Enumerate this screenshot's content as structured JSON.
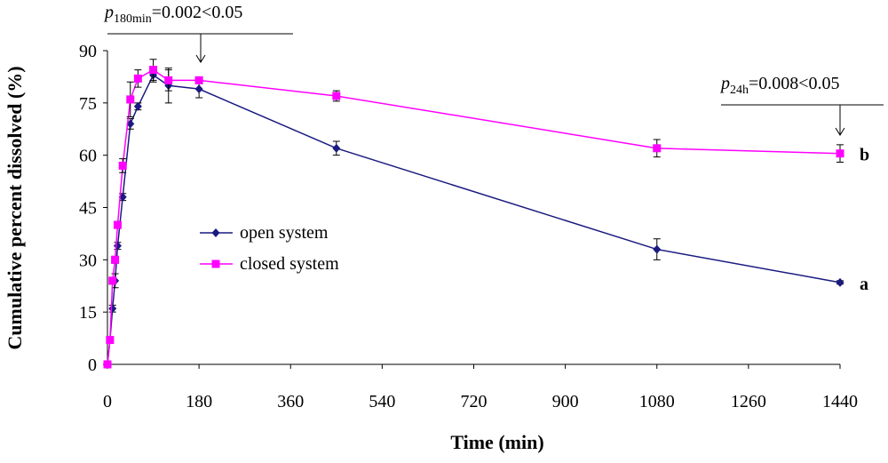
{
  "chart_data": {
    "type": "line",
    "x_label": "Time (min)",
    "y_label": "Cumulative percent dissolved (%)",
    "x": [
      0,
      5,
      10,
      15,
      20,
      30,
      45,
      60,
      90,
      120,
      180,
      450,
      1080,
      1440
    ],
    "series": [
      {
        "name": "open system",
        "color": "#1a1a80",
        "marker": "diamond",
        "label": "a",
        "values": [
          0,
          7,
          16,
          24,
          34,
          48,
          69,
          74,
          83,
          80,
          79,
          62,
          33,
          23.5
        ],
        "errors": [
          0,
          0.5,
          1,
          2,
          1,
          1,
          1.5,
          1,
          2,
          5,
          2.5,
          2,
          3,
          0.5
        ]
      },
      {
        "name": "closed system",
        "color": "#ff00ff",
        "marker": "square",
        "label": "b",
        "values": [
          0,
          7,
          24,
          30,
          40,
          57,
          76,
          82,
          84.5,
          81.5,
          81.5,
          77,
          62,
          60.5
        ],
        "errors": [
          0,
          0.5,
          1,
          1,
          1,
          2,
          5,
          2.5,
          3,
          3,
          0.5,
          1.5,
          2.5,
          2.5
        ]
      }
    ],
    "annotations": [
      {
        "text": "p",
        "subscript": "180min",
        "suffix": "=0.002<0.05"
      },
      {
        "text": "p",
        "subscript": "24h",
        "suffix": "=0.008<0.05"
      }
    ],
    "xlim": [
      0,
      1440
    ],
    "xticks": [
      0,
      180,
      360,
      540,
      720,
      900,
      1080,
      1260,
      1440
    ],
    "ylim": [
      0,
      90
    ],
    "yticks": [
      0,
      15,
      30,
      45,
      60,
      75,
      90
    ],
    "grid": false
  }
}
